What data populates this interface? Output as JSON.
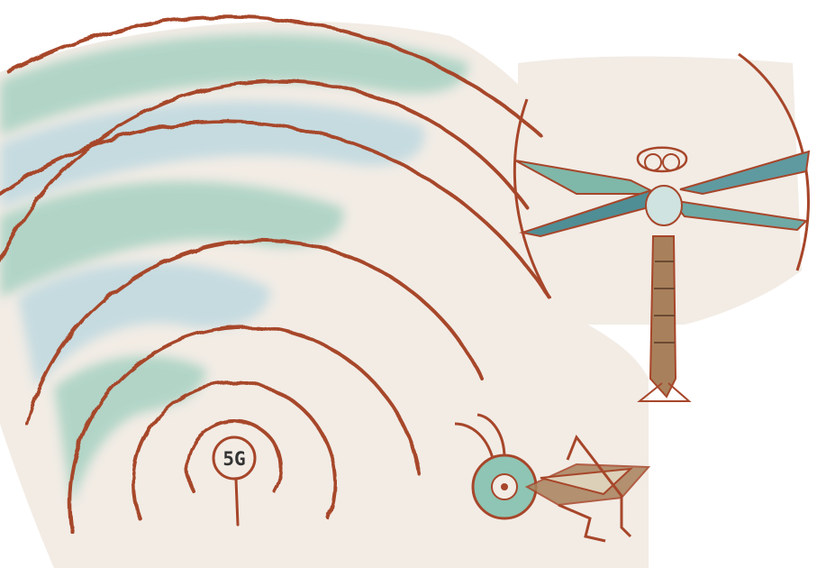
{
  "label": "5G",
  "colors": {
    "background": "#ffffff",
    "paper": "#f2ece5",
    "ink": "#a7462a",
    "wash_teal": "#9ccdbd",
    "wash_blue": "#b7d6df",
    "wing_dark": "#4f8e95",
    "body_brown": "#a8815c"
  },
  "figures": [
    {
      "name": "antenna-tower-icon"
    },
    {
      "name": "radio-wave-arcs"
    },
    {
      "name": "dragonfly-icon"
    },
    {
      "name": "grasshopper-icon"
    }
  ]
}
